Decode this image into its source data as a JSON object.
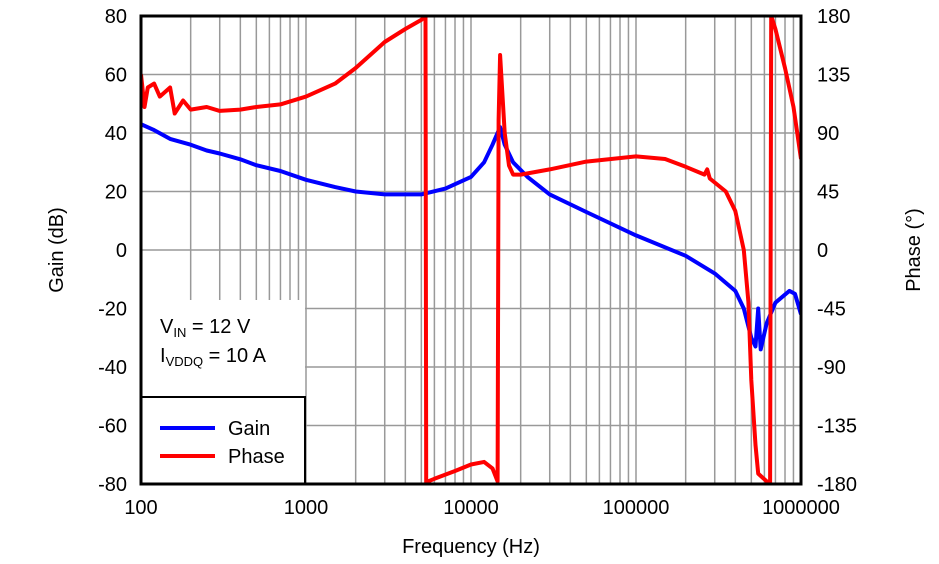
{
  "chart_data": {
    "type": "line",
    "title": "",
    "xlabel": "Frequency (Hz)",
    "ylabel": "Gain (dB)",
    "y2label": "Phase (°)",
    "xscale": "log",
    "xlim": [
      100,
      1000000
    ],
    "ylim": [
      -80,
      80
    ],
    "y2lim": [
      -180,
      180
    ],
    "grid": true,
    "legend_placement": "bottom-left",
    "x_ticks": [
      "100",
      "1000",
      "10000",
      "100000",
      "1000000"
    ],
    "y_ticks": [
      "80",
      "60",
      "40",
      "20",
      "0",
      "-20",
      "-40",
      "-60",
      "-80"
    ],
    "y2_ticks": [
      "180",
      "135",
      "90",
      "45",
      "0",
      "-45",
      "-90",
      "-135",
      "-180"
    ],
    "annotation": {
      "line1": {
        "main": "V",
        "sub": "IN",
        "rest": " = 12 V"
      },
      "line2": {
        "main": "I",
        "sub": "VDDQ",
        "rest": " = 10 A"
      }
    },
    "series": [
      {
        "name": "Gain",
        "axis": "left",
        "color": "#0000ff",
        "x": [
          100,
          120,
          150,
          200,
          250,
          300,
          400,
          500,
          700,
          1000,
          1500,
          2000,
          3000,
          5000,
          7000,
          10000,
          12000,
          13500,
          15000,
          16000,
          18000,
          22000,
          30000,
          50000,
          100000,
          200000,
          300000,
          400000,
          450000,
          500000,
          530000,
          550000,
          570000,
          620000,
          700000,
          850000,
          920000,
          1000000
        ],
        "y": [
          43,
          41,
          38,
          36,
          34,
          33,
          31,
          29,
          27,
          24,
          21.5,
          20,
          19,
          19,
          21,
          25,
          30,
          36,
          42,
          36,
          30,
          25,
          19,
          13,
          5,
          -2,
          -8,
          -14,
          -20,
          -30,
          -33,
          -20,
          -34,
          -25,
          -18,
          -14,
          -15,
          -22
        ]
      },
      {
        "name": "Phase",
        "axis": "right",
        "color": "#ff0000",
        "x": [
          100,
          105,
          110,
          120,
          130,
          150,
          160,
          180,
          200,
          250,
          300,
          400,
          500,
          700,
          1000,
          1500,
          2000,
          3000,
          4000,
          5000,
          5300,
          5350,
          5500,
          6000,
          8000,
          10000,
          12000,
          13500,
          14500,
          14700,
          15000,
          16000,
          17000,
          18000,
          20000,
          30000,
          50000,
          100000,
          150000,
          200000,
          260000,
          270000,
          280000,
          350000,
          400000,
          450000,
          480000,
          500000,
          530000,
          550000,
          620000,
          650000,
          660000,
          700000,
          800000,
          900000,
          1000000
        ],
        "y": [
          135,
          110,
          125,
          128,
          118,
          125,
          105,
          115,
          108,
          110,
          107,
          108,
          110,
          112,
          118,
          128,
          140,
          160,
          170,
          177,
          180,
          -180,
          -178,
          -176,
          -170,
          -165,
          -163,
          -168,
          -178,
          100,
          150,
          90,
          65,
          58,
          58,
          62,
          68,
          72,
          70,
          64,
          58,
          62,
          55,
          45,
          30,
          0,
          -40,
          -100,
          -150,
          -172,
          -178,
          -180,
          180,
          170,
          140,
          110,
          70
        ]
      }
    ]
  }
}
